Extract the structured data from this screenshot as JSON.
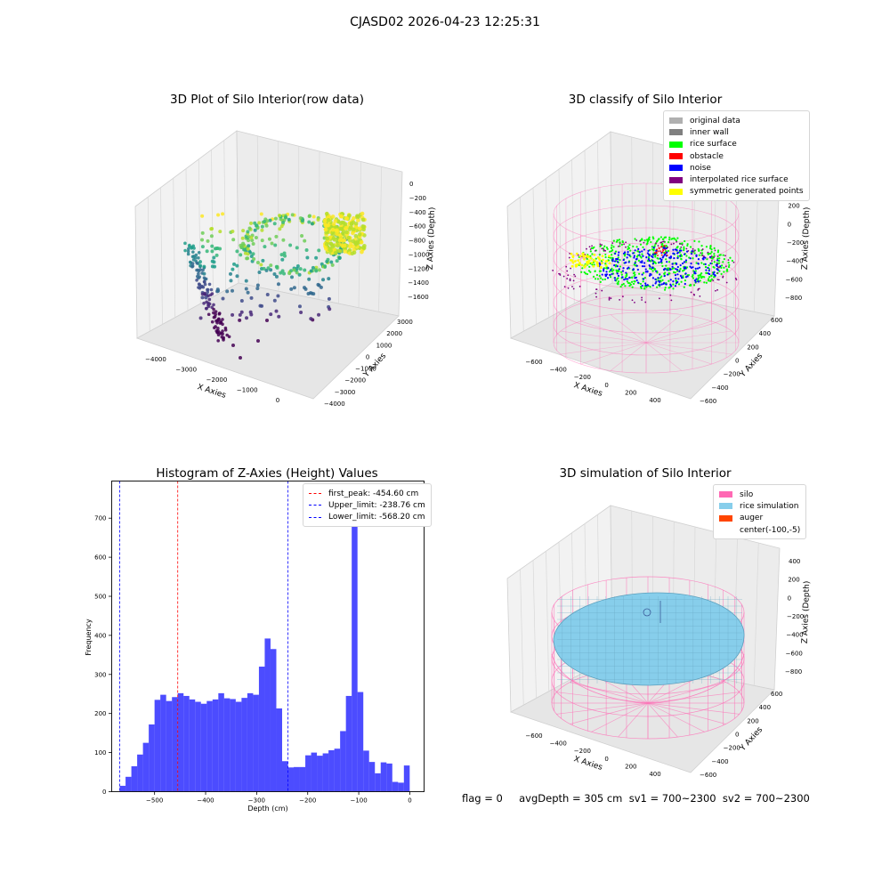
{
  "figure_title": "CJASD02 2026-04-23 12:25:31",
  "footer": {
    "text": "flag = 0     avgDepth = 305 cm  sv1 = 700~2300  sv2 = 700~2300"
  },
  "chart_data": [
    {
      "type": "scatter",
      "subtype": "3d",
      "title": "3D Plot of Silo Interior(row data)",
      "xlabel": "X Axies",
      "ylabel": "Y Axies",
      "zlabel": "Z Axies (Depth)",
      "x_ticks": [
        "−4000",
        "−3000",
        "−2000",
        "−1000",
        "0"
      ],
      "y_ticks": [
        "−4000",
        "−3000",
        "−2000",
        "−1000",
        "0",
        "1000",
        "2000",
        "3000"
      ],
      "z_ticks": [
        "−1600",
        "−1400",
        "−1200",
        "−1000",
        "−800",
        "−600",
        "−400",
        "−200",
        "0"
      ],
      "xlim": [
        -4500,
        500
      ],
      "ylim": [
        -4000,
        3500
      ],
      "zlim": [
        -1700,
        100
      ],
      "colormap": "viridis"
    },
    {
      "type": "scatter",
      "subtype": "3d",
      "title": "3D classify of Silo Interior",
      "xlabel": "X Axies",
      "ylabel": "Y Axies",
      "zlabel": "Z Axies (Depth)",
      "x_ticks": [
        "−600",
        "−400",
        "−200",
        "0",
        "200",
        "400"
      ],
      "y_ticks": [
        "−600",
        "−400",
        "−200",
        "0",
        "200",
        "400",
        "600"
      ],
      "z_ticks": [
        "−800",
        "−600",
        "−400",
        "−200",
        "0",
        "200",
        "400"
      ],
      "legend": {
        "position": "top-right",
        "entries": [
          {
            "label": "original data",
            "color": "#b0b0b0"
          },
          {
            "label": "inner wall",
            "color": "#808080"
          },
          {
            "label": "rice surface",
            "color": "#00ff00"
          },
          {
            "label": "obstacle",
            "color": "#ff0000"
          },
          {
            "label": "noise",
            "color": "#0000ff"
          },
          {
            "label": "interpolated rice surface",
            "color": "#800080"
          },
          {
            "label": "symmetric generated points",
            "color": "#ffff00"
          }
        ]
      }
    },
    {
      "type": "bar",
      "subtype": "histogram",
      "title": "Histogram of Z-Axies (Height) Values",
      "xlabel": "Depth (cm)",
      "ylabel": "Frequency",
      "xlim": [
        -584,
        28
      ],
      "ylim": [
        0,
        795
      ],
      "x_ticks": [
        -500,
        -400,
        -300,
        -200,
        -100,
        0
      ],
      "x_tick_labels": [
        "−500",
        "−400",
        "−300",
        "−200",
        "−100",
        "0"
      ],
      "y_ticks": [
        0,
        100,
        200,
        300,
        400,
        500,
        600,
        700
      ],
      "y_tick_labels": [
        "0",
        "100",
        "200",
        "300",
        "400",
        "500",
        "600",
        "700"
      ],
      "bar_color": "#0000ff",
      "bar_alpha": 0.7,
      "bin_start": -568.2,
      "bin_width": 11.36,
      "values": [
        15,
        38,
        65,
        95,
        125,
        172,
        235,
        248,
        232,
        242,
        252,
        245,
        236,
        230,
        225,
        232,
        236,
        252,
        239,
        237,
        230,
        240,
        252,
        248,
        320,
        392,
        365,
        213,
        78,
        62,
        63,
        63,
        93,
        100,
        92,
        98,
        106,
        110,
        155,
        245,
        758,
        255,
        105,
        76,
        47,
        75,
        72,
        25,
        23,
        67
      ],
      "vlines": [
        {
          "label": "first_peak: -454.60 cm",
          "x": -454.6,
          "color": "#ff0000"
        },
        {
          "label": "Upper_limit: -238.76 cm",
          "x": -238.76,
          "color": "#0000ff"
        },
        {
          "label": "Lower_limit: -568.20 cm",
          "x": -568.2,
          "color": "#0000ff"
        }
      ],
      "legend": {
        "position": "top-right"
      }
    },
    {
      "type": "area",
      "subtype": "3d-surface",
      "title": "3D simulation of Silo Interior",
      "xlabel": "X Axies",
      "ylabel": "Y Axies",
      "zlabel": "Z Axies (Depth)",
      "x_ticks": [
        "−600",
        "−400",
        "−200",
        "0",
        "200",
        "400"
      ],
      "y_ticks": [
        "−600",
        "−400",
        "−200",
        "0",
        "200",
        "400",
        "600"
      ],
      "z_ticks": [
        "−800",
        "−600",
        "−400",
        "−200",
        "0",
        "200",
        "400"
      ],
      "legend": {
        "position": "top-right",
        "entries": [
          {
            "label": "silo",
            "color": "#ff69b4"
          },
          {
            "label": "rice simulation",
            "color": "#87ceeb"
          },
          {
            "label": "auger",
            "color": "#ff4500"
          },
          {
            "label": "center(-100,-5)",
            "color": ""
          }
        ]
      }
    }
  ]
}
